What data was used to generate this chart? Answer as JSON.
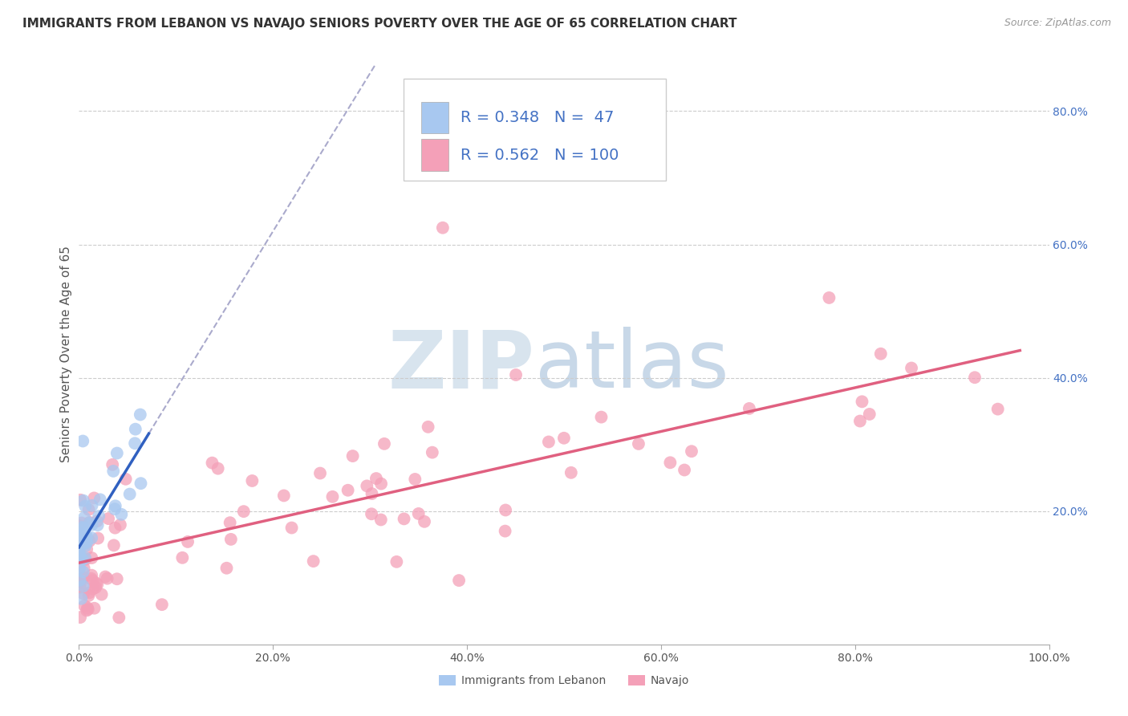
{
  "title": "IMMIGRANTS FROM LEBANON VS NAVAJO SENIORS POVERTY OVER THE AGE OF 65 CORRELATION CHART",
  "source": "Source: ZipAtlas.com",
  "ylabel": "Seniors Poverty Over the Age of 65",
  "xmin": 0.0,
  "xmax": 1.0,
  "ymin": 0.0,
  "ymax": 0.87,
  "xticks": [
    0.0,
    0.2,
    0.4,
    0.6,
    0.8,
    1.0
  ],
  "xtick_labels": [
    "0.0%",
    "20.0%",
    "40.0%",
    "60.0%",
    "80.0%",
    "100.0%"
  ],
  "yticks_right": [
    0.2,
    0.4,
    0.6,
    0.8
  ],
  "ytick_labels_right": [
    "20.0%",
    "40.0%",
    "60.0%",
    "80.0%"
  ],
  "color_blue": "#A8C8F0",
  "color_pink": "#F4A0B8",
  "line_color_blue": "#3060C0",
  "line_color_pink": "#E06080",
  "line_color_dashed": "#AAAACC",
  "legend_text_color": "#4472C4",
  "legend_num_color": "#4472C4",
  "background_color": "#FFFFFF",
  "title_fontsize": 11,
  "axis_label_fontsize": 11,
  "tick_fontsize": 10,
  "legend_fontsize": 14,
  "watermark_zip_color": "#D8E4EE",
  "watermark_atlas_color": "#C8D8E8"
}
